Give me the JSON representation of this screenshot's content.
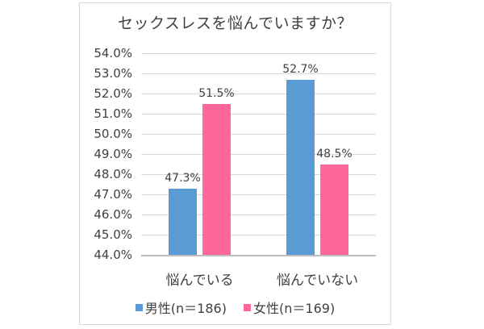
{
  "chart_data": {
    "type": "bar",
    "title": "セックスレスを悩んでいますか？",
    "categories": [
      "悩んでいる",
      "悩んでいない"
    ],
    "series": [
      {
        "name": "男性(n=186)",
        "label": "男性(n＝186)",
        "color": "#5B9BD5",
        "values": [
          47.3,
          52.7
        ]
      },
      {
        "name": "女性(n=169)",
        "label": "女性(n＝169)",
        "color": "#FF6699",
        "values": [
          51.5,
          48.5
        ]
      }
    ],
    "data_labels": [
      [
        "47.3%",
        "52.7%"
      ],
      [
        "51.5%",
        "48.5%"
      ]
    ],
    "yticks": [
      "54.0%",
      "53.0%",
      "52.0%",
      "51.0%",
      "50.0%",
      "49.0%",
      "48.0%",
      "47.0%",
      "46.0%",
      "45.0%",
      "44.0%"
    ],
    "ylim": [
      44.0,
      54.0
    ],
    "xlabel": "",
    "ylabel": "",
    "grid": true,
    "legend_position": "bottom"
  }
}
